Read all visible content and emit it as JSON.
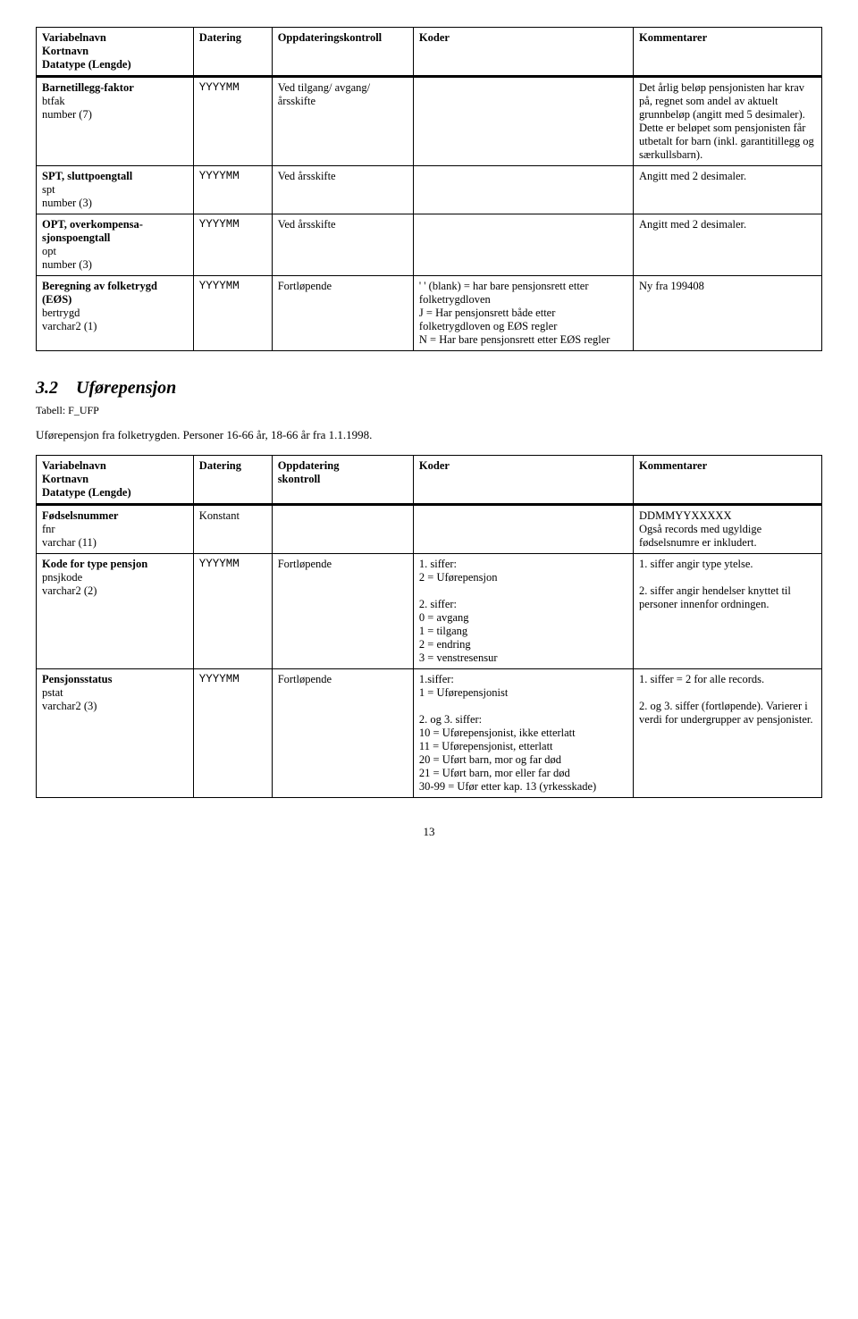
{
  "table1": {
    "headers": {
      "c1a": "Variabelnavn",
      "c1b": "Kortnavn",
      "c1c": "Datatype (Lengde)",
      "c2": "Datering",
      "c3": "Oppdateringskontroll",
      "c4": "Koder",
      "c5": "Kommentarer"
    },
    "rows": [
      {
        "v1": "Barnetillegg-faktor",
        "v2": "btfak",
        "v3": "number (7)",
        "dat": "YYYYMM",
        "opp": "Ved tilgang/ avgang/ årsskifte",
        "kod": "",
        "kom": "Det årlig beløp pensjonisten har krav på, regnet som andel av aktuelt grunnbeløp (angitt med 5 desimaler). Dette er beløpet som pensjonisten får utbetalt for barn (inkl. garantitillegg og særkullsbarn)."
      },
      {
        "v1": "SPT, sluttpoengtall",
        "v2": "spt",
        "v3": "number (3)",
        "dat": "YYYYMM",
        "opp": "Ved årsskifte",
        "kod": "",
        "kom": "Angitt med 2 desimaler."
      },
      {
        "v1": "OPT, overkompensa-sjonspoengtall",
        "v2": "opt",
        "v3": "number (3)",
        "dat": "YYYYMM",
        "opp": "Ved årsskifte",
        "kod": "",
        "kom": "Angitt med 2 desimaler."
      },
      {
        "v1": "Beregning av folketrygd (EØS)",
        "v2": "bertrygd",
        "v3": "varchar2 (1)",
        "dat": "YYYYMM",
        "opp": "Fortløpende",
        "kod": "' ' (blank) = har bare pensjonsrett etter folketrygdloven\nJ = Har pensjonsrett både etter folketrygdloven og EØS regler\nN = Har bare pensjonsrett etter EØS regler",
        "kom": "Ny fra 199408"
      }
    ]
  },
  "section": {
    "num": "3.2",
    "title": "Uførepensjon",
    "tabell": "Tabell: F_UFP",
    "intro": "Uførepensjon fra folketrygden. Personer 16-66 år, 18-66 år fra 1.1.1998."
  },
  "table2": {
    "headers": {
      "c1a": "Variabelnavn",
      "c1b": "Kortnavn",
      "c1c": "Datatype (Lengde)",
      "c2": "Datering",
      "c3a": "Oppdatering",
      "c3b": "skontroll",
      "c4": "Koder",
      "c5": "Kommentarer"
    },
    "rows": [
      {
        "v1": "Fødselsnummer",
        "v2": "fnr",
        "v3": "varchar (11)",
        "dat": "Konstant",
        "opp": "",
        "kod": "",
        "kom": "DDMMYYXXXXX\nOgså records med ugyldige fødselsnumre er inkludert."
      },
      {
        "v1": "Kode for type pensjon",
        "v2": "pnsjkode",
        "v3": "varchar2 (2)",
        "dat": "YYYYMM",
        "opp": "Fortløpende",
        "kod": "1. siffer:\n2  = Uførepensjon\n\n2. siffer:\n0  = avgang\n1  = tilgang\n2  = endring\n3  = venstresensur",
        "kom": "1. siffer angir type ytelse.\n\n2. siffer angir hendelser knyttet til personer innenfor ordningen."
      },
      {
        "v1": "Pensjonsstatus",
        "v2": "pstat",
        "v3": "varchar2 (3)",
        "dat": "YYYYMM",
        "opp": "Fortløpende",
        "kod": "1.siffer:\n1 = Uførepensjonist\n\n2. og 3. siffer:\n10 = Uførepensjonist, ikke etterlatt\n11 = Uførepensjonist, etterlatt\n20 = Uført barn, mor og far død\n21 = Uført barn, mor eller far død\n30-99 = Ufør etter kap. 13 (yrkesskade)",
        "kom": "1. siffer = 2 for alle records.\n\n2. og 3. siffer (fortløpende). Varierer i verdi for undergrupper av pensjonister."
      }
    ]
  },
  "pagenum": "13"
}
